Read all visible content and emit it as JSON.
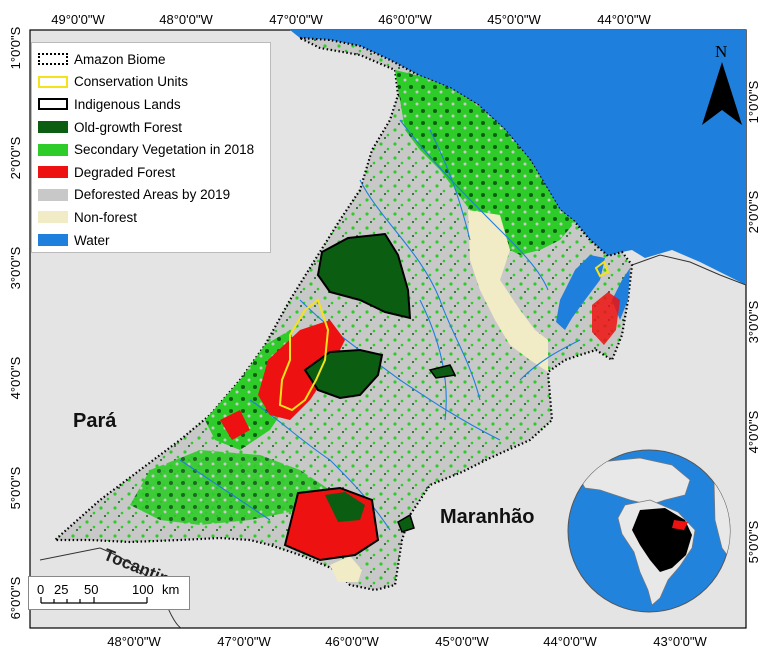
{
  "map": {
    "top_ticks": [
      "49°0'0\"W",
      "48°0'0\"W",
      "47°0'0\"W",
      "46°0'0\"W",
      "45°0'0\"W",
      "44°0'0\"W"
    ],
    "bottom_ticks": [
      "48°0'0\"W",
      "47°0'0\"W",
      "46°0'0\"W",
      "45°0'0\"W",
      "44°0'0\"W",
      "43°0'0\"W"
    ],
    "left_ticks": [
      "1°0'0\"S",
      "2°0'0\"S",
      "3°0'0\"S",
      "4°0'0\"S",
      "5°0'0\"S",
      "6°0'0\"S"
    ],
    "right_ticks": [
      "1°0'0\"S",
      "2°0'0\"S",
      "3°0'0\"S",
      "4°0'0\"S",
      "5°0'0\"S"
    ],
    "states": [
      "Pará",
      "Maranhão",
      "Tocantins"
    ],
    "north_label": "N",
    "scale": {
      "ticks": [
        "0",
        "25",
        "50",
        "100"
      ],
      "unit": "km"
    },
    "colors": {
      "old_growth": "#0b5d12",
      "secondary": "#2ecc28",
      "degraded": "#ee1111",
      "deforested": "#c8c8c8",
      "non_forest": "#f1ecc6",
      "water": "#1f7fdc",
      "background": "#e4e4e4"
    }
  },
  "legend": [
    {
      "label": "Amazon Biome",
      "swatch": "dotted"
    },
    {
      "label": "Conservation Units",
      "swatch": "yellow-outline"
    },
    {
      "label": "Indigenous Lands",
      "swatch": "black-outline"
    },
    {
      "label": "Old-growth Forest",
      "swatch": "#0b5d12"
    },
    {
      "label": "Secondary Vegetation in 2018",
      "swatch": "#2ecc28"
    },
    {
      "label": "Degraded Forest",
      "swatch": "#ee1111"
    },
    {
      "label": "Deforested Areas by 2019",
      "swatch": "#c8c8c8"
    },
    {
      "label": "Non-forest",
      "swatch": "#f1ecc6"
    },
    {
      "label": "Water",
      "swatch": "#1f7fdc"
    }
  ]
}
